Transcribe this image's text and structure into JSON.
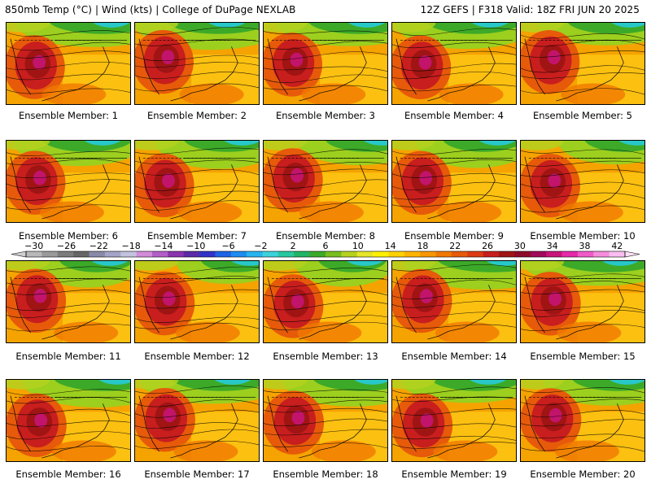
{
  "header": {
    "title_left": "850mb Temp (°C) | Wind (kts) | College of DuPage NEXLAB",
    "title_right": "12Z GEFS | F318 Valid: 18Z FRI JUN 20 2025"
  },
  "panels": [
    {
      "label": "Ensemble Member: 1"
    },
    {
      "label": "Ensemble Member: 2"
    },
    {
      "label": "Ensemble Member: 3"
    },
    {
      "label": "Ensemble Member: 4"
    },
    {
      "label": "Ensemble Member: 5"
    },
    {
      "label": "Ensemble Member: 6"
    },
    {
      "label": "Ensemble Member: 7"
    },
    {
      "label": "Ensemble Member: 8"
    },
    {
      "label": "Ensemble Member: 9"
    },
    {
      "label": "Ensemble Member: 10"
    },
    {
      "label": "Ensemble Member: 11"
    },
    {
      "label": "Ensemble Member: 12"
    },
    {
      "label": "Ensemble Member: 13"
    },
    {
      "label": "Ensemble Member: 14"
    },
    {
      "label": "Ensemble Member: 15"
    },
    {
      "label": "Ensemble Member: 16"
    },
    {
      "label": "Ensemble Member: 17"
    },
    {
      "label": "Ensemble Member: 18"
    },
    {
      "label": "Ensemble Member: 19"
    },
    {
      "label": "Ensemble Member: 20"
    }
  ],
  "colorbar": {
    "ticks": [
      "-30",
      "-26",
      "-22",
      "-18",
      "-14",
      "-10",
      "-6",
      "-2",
      "2",
      "6",
      "10",
      "14",
      "18",
      "22",
      "26",
      "30",
      "34",
      "38",
      "42"
    ],
    "colors": [
      "#b8b8b8",
      "#9a9a9a",
      "#7c7c7c",
      "#666666",
      "#8a8aa8",
      "#a4a4c8",
      "#c3c3e0",
      "#d38cd8",
      "#b45ec8",
      "#8a34b0",
      "#5a2aa8",
      "#3232c8",
      "#1e64e6",
      "#1e8cf0",
      "#28b4f0",
      "#3cd2dc",
      "#28c8a0",
      "#20b464",
      "#3caa28",
      "#78be1e",
      "#b4d21e",
      "#e6e628",
      "#fff000",
      "#ffd200",
      "#ffb400",
      "#f79600",
      "#f07800",
      "#e65a0a",
      "#dc3c14",
      "#c81e1e",
      "#a01414",
      "#8c0a2a",
      "#a00a5a",
      "#c8147a",
      "#e628aa",
      "#f05ac8",
      "#f58cdc",
      "#fabef0"
    ]
  }
}
